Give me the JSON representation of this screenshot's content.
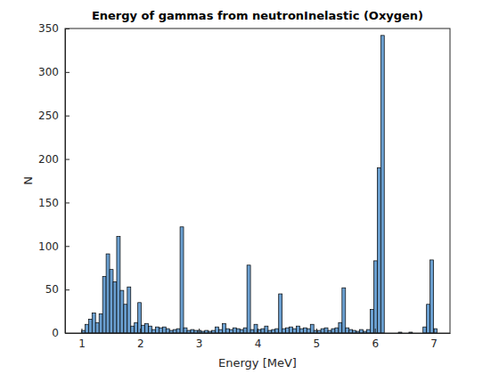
{
  "chart_data": {
    "type": "histogram",
    "title": "Energy of gammas from neutronInelastic (Oxygen)",
    "x_label": "Energy [MeV]",
    "y_label": "N",
    "bins": [
      1,
      1.06,
      1.12,
      1.18,
      1.24,
      1.3,
      1.36,
      1.42,
      1.48,
      1.54,
      1.6,
      1.66,
      1.72,
      1.78,
      1.84,
      1.9,
      1.96,
      2.02,
      2.08,
      2.14,
      2.2,
      2.26,
      2.32,
      2.38,
      2.44,
      2.5,
      2.56,
      2.62,
      2.68,
      2.74,
      2.8,
      2.86,
      2.92,
      2.98,
      3.04,
      3.1,
      3.16,
      3.22,
      3.28,
      3.34,
      3.4,
      3.46,
      3.52,
      3.58,
      3.64,
      3.7,
      3.76,
      3.82,
      3.88,
      3.94,
      4,
      4.06,
      4.12,
      4.18,
      4.24,
      4.3,
      4.36,
      4.42,
      4.48,
      4.54,
      4.6,
      4.66,
      4.72,
      4.78,
      4.84,
      4.9,
      4.96,
      5.02,
      5.08,
      5.14,
      5.2,
      5.26,
      5.32,
      5.38,
      5.44,
      5.5,
      5.56,
      5.62,
      5.68,
      5.74,
      5.8,
      5.86,
      5.92,
      5.98,
      6.04,
      6.1,
      6.16,
      6.22,
      6.28,
      6.34,
      6.4,
      6.46,
      6.52,
      6.58,
      6.64,
      6.7,
      6.76,
      6.82,
      6.88,
      6.94,
      7,
      7.06
    ],
    "values": [
      3,
      10,
      16,
      23,
      12,
      22,
      65,
      91,
      73,
      59,
      111,
      49,
      33,
      53,
      8,
      12,
      35,
      9,
      11,
      8,
      4,
      7,
      6,
      7,
      5,
      3,
      4,
      5,
      122,
      6,
      3,
      4,
      3,
      3,
      2,
      3,
      2,
      3,
      7,
      4,
      11,
      5,
      4,
      6,
      5,
      4,
      6,
      78,
      4,
      10,
      4,
      5,
      8,
      3,
      4,
      5,
      45,
      5,
      6,
      7,
      5,
      8,
      5,
      6,
      5,
      10,
      3,
      3,
      5,
      6,
      3,
      5,
      6,
      12,
      52,
      6,
      4,
      3,
      2,
      4,
      2,
      4,
      27,
      83,
      190,
      342,
      0,
      0,
      0,
      0,
      1,
      0,
      0,
      1,
      0,
      0,
      0,
      7,
      33,
      84,
      5
    ],
    "color": "#6a9fd0",
    "xlim": [
      0.72,
      7.28
    ],
    "ylim": [
      0,
      350
    ],
    "xticks": [
      1,
      2,
      3,
      4,
      5,
      6,
      7
    ],
    "yticks": [
      0,
      50,
      100,
      150,
      200,
      250,
      300,
      350
    ]
  }
}
